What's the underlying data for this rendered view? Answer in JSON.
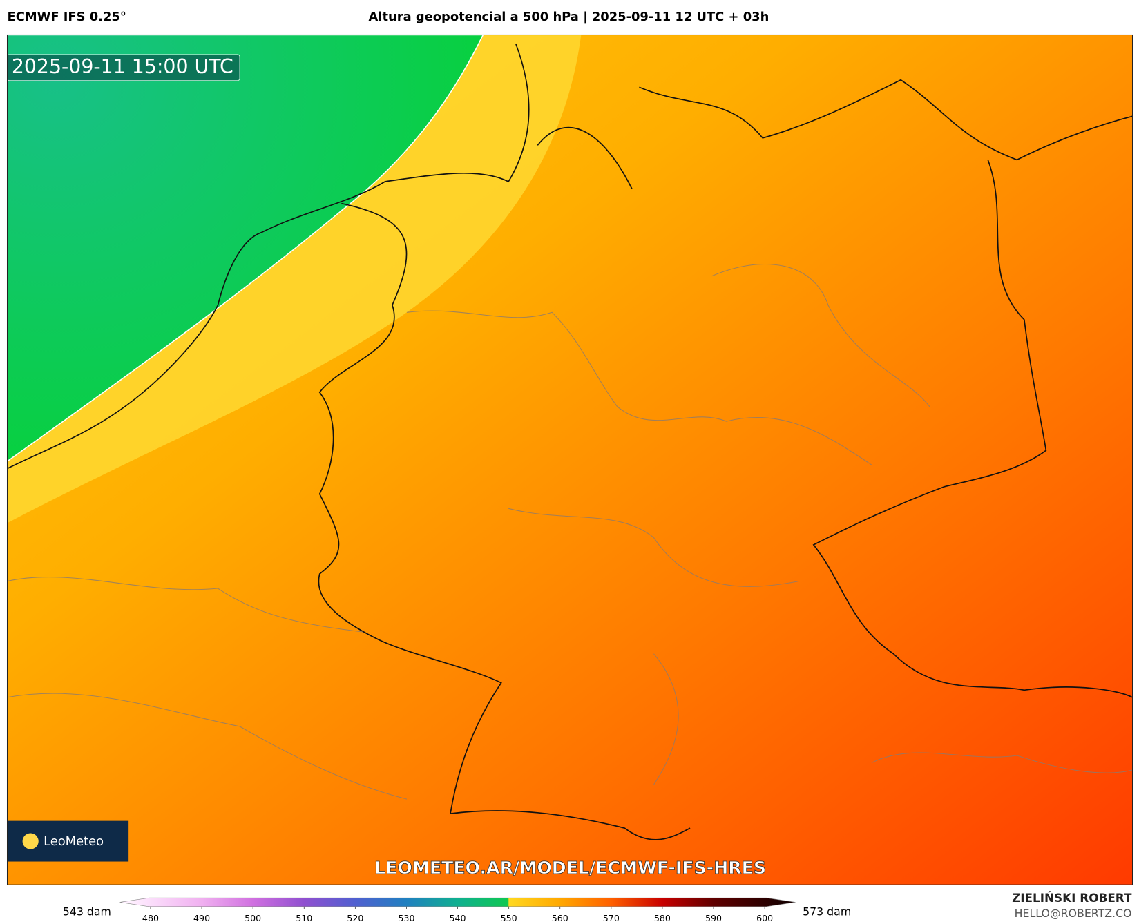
{
  "header": {
    "model": "ECMWF IFS 0.25°",
    "title": "Altura geopotencial a 500 hPa | 2025-09-11 12 UTC + 03h"
  },
  "map": {
    "valid_time": "2025-09-11 15:00 UTC",
    "logo": "LeoMeteo",
    "watermark": "LEOMETEO.AR/MODEL/ECMWF-IFS-HRES"
  },
  "colorbar": {
    "min_label": "543 dam",
    "max_label": "573 dam",
    "lim": [
      474,
      606
    ],
    "ticks": [
      480,
      490,
      500,
      510,
      520,
      530,
      540,
      550,
      560,
      570,
      580,
      590,
      600
    ],
    "stops": [
      {
        "value": 476,
        "color": "#fff0ff"
      },
      {
        "value": 490,
        "color": "#f0b0f0"
      },
      {
        "value": 500,
        "color": "#d070e0"
      },
      {
        "value": 510,
        "color": "#9050d0"
      },
      {
        "value": 520,
        "color": "#5060d0"
      },
      {
        "value": 530,
        "color": "#2080c0"
      },
      {
        "value": 540,
        "color": "#10b090"
      },
      {
        "value": 549.9,
        "color": "#10c850"
      },
      {
        "value": 550,
        "color": "#ffd820"
      },
      {
        "value": 560,
        "color": "#ffa800"
      },
      {
        "value": 570,
        "color": "#ff6000"
      },
      {
        "value": 580,
        "color": "#c80000"
      },
      {
        "value": 590,
        "color": "#600000"
      },
      {
        "value": 604,
        "color": "#180000"
      }
    ]
  },
  "credits": {
    "author": "ZIELIŃSKI ROBERT",
    "contact": "HELLO@ROBERTZ.CO"
  }
}
